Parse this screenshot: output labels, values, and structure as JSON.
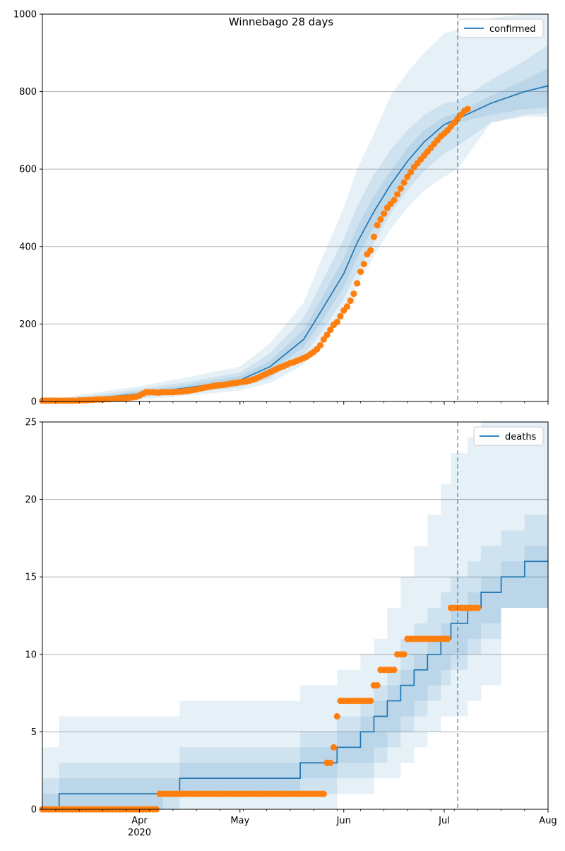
{
  "figure_title": "Winnebago 28 days",
  "x_ticks": [
    {
      "date": "2020-04-01",
      "label": "Apr",
      "sublabel": "2020"
    },
    {
      "date": "2020-05-01",
      "label": "May",
      "sublabel": ""
    },
    {
      "date": "2020-06-01",
      "label": "Jun",
      "sublabel": ""
    },
    {
      "date": "2020-07-01",
      "label": "Jul",
      "sublabel": ""
    },
    {
      "date": "2020-08-01",
      "label": "Aug",
      "sublabel": ""
    }
  ],
  "x_range": [
    "2020-03-03",
    "2020-08-01"
  ],
  "forecast_start": "2020-07-05",
  "colors": {
    "model": "#1f77b4",
    "observed": "#ff7f0e",
    "band": "#1f77b4",
    "grid": "#b0b0b0"
  },
  "chart_data": [
    {
      "type": "line",
      "series_name": "confirmed",
      "legend_position": "top-right",
      "grid": "horizontal",
      "ylim": [
        0,
        1000
      ],
      "yticks": [
        0,
        200,
        400,
        600,
        800,
        1000
      ],
      "model_line": {
        "x": [
          "2020-03-03",
          "2020-03-15",
          "2020-04-01",
          "2020-04-15",
          "2020-05-01",
          "2020-05-10",
          "2020-05-20",
          "2020-05-25",
          "2020-06-01",
          "2020-06-05",
          "2020-06-10",
          "2020-06-15",
          "2020-06-20",
          "2020-06-25",
          "2020-07-01",
          "2020-07-05",
          "2020-07-15",
          "2020-07-25",
          "2020-08-01"
        ],
        "y": [
          0,
          5,
          20,
          35,
          55,
          90,
          160,
          230,
          330,
          410,
          490,
          560,
          620,
          670,
          715,
          730,
          770,
          800,
          815
        ]
      },
      "bands": [
        {
          "name": "inner",
          "upper": [
            0,
            8,
            26,
            43,
            66,
            105,
            185,
            260,
            370,
            450,
            530,
            595,
            655,
            700,
            735,
            745,
            790,
            830,
            860
          ],
          "lower": [
            0,
            3,
            15,
            28,
            45,
            75,
            140,
            200,
            295,
            370,
            450,
            525,
            585,
            635,
            680,
            720,
            740,
            755,
            760
          ]
        },
        {
          "name": "middle",
          "upper": [
            0,
            12,
            32,
            50,
            75,
            125,
            215,
            300,
            420,
            505,
            585,
            650,
            700,
            740,
            770,
            775,
            830,
            880,
            920
          ],
          "lower": [
            0,
            1,
            10,
            22,
            37,
            60,
            120,
            175,
            265,
            335,
            410,
            485,
            545,
            595,
            640,
            660,
            720,
            740,
            745
          ]
        },
        {
          "name": "outer",
          "upper": [
            0,
            18,
            40,
            62,
            90,
            150,
            255,
            360,
            500,
            600,
            690,
            790,
            850,
            900,
            950,
            960,
            990,
            1000,
            1000
          ],
          "lower": [
            0,
            0,
            5,
            15,
            28,
            48,
            95,
            145,
            230,
            300,
            375,
            445,
            500,
            545,
            580,
            600,
            720,
            735,
            735
          ]
        }
      ],
      "observed": {
        "x_start": "2020-03-03",
        "y": [
          2,
          2,
          2,
          2,
          2,
          2,
          2,
          2,
          2,
          2,
          2,
          3,
          3,
          3,
          4,
          4,
          5,
          5,
          5,
          6,
          6,
          7,
          7,
          8,
          8,
          9,
          10,
          11,
          12,
          15,
          20,
          24,
          24,
          24,
          23,
          23,
          24,
          24,
          24,
          24,
          25,
          25,
          26,
          27,
          28,
          30,
          31,
          33,
          35,
          37,
          38,
          40,
          41,
          42,
          43,
          44,
          46,
          47,
          48,
          50,
          51,
          52,
          54,
          57,
          60,
          64,
          68,
          72,
          76,
          80,
          84,
          88,
          91,
          95,
          99,
          101,
          105,
          108,
          112,
          116,
          122,
          128,
          135,
          145,
          160,
          172,
          185,
          198,
          205,
          220,
          235,
          245,
          260,
          278,
          305,
          335,
          355,
          380,
          390,
          425,
          455,
          470,
          485,
          500,
          510,
          520,
          535,
          550,
          565,
          580,
          592,
          605,
          615,
          625,
          635,
          645,
          655,
          665,
          675,
          685,
          692,
          700,
          710,
          720,
          730,
          740,
          750,
          755
        ]
      }
    },
    {
      "type": "line",
      "series_name": "deaths",
      "legend_position": "top-right",
      "grid": "horizontal",
      "ylim": [
        0,
        25
      ],
      "yticks": [
        0,
        5,
        10,
        15,
        20,
        25
      ],
      "model_steps": [
        [
          "2020-03-03",
          0
        ],
        [
          "2020-03-08",
          1
        ],
        [
          "2020-04-08",
          1
        ],
        [
          "2020-04-13",
          2
        ],
        [
          "2020-05-19",
          3
        ],
        [
          "2020-05-30",
          4
        ],
        [
          "2020-06-06",
          5
        ],
        [
          "2020-06-10",
          6
        ],
        [
          "2020-06-14",
          7
        ],
        [
          "2020-06-18",
          8
        ],
        [
          "2020-06-22",
          9
        ],
        [
          "2020-06-26",
          10
        ],
        [
          "2020-06-30",
          11
        ],
        [
          "2020-07-03",
          12
        ],
        [
          "2020-07-08",
          13
        ],
        [
          "2020-07-12",
          14
        ],
        [
          "2020-07-18",
          15
        ],
        [
          "2020-07-25",
          16
        ],
        [
          "2020-08-01",
          16
        ]
      ],
      "band_levels": [
        {
          "name": "inner",
          "upper": [
            1,
            2,
            2,
            3,
            4,
            5,
            6,
            7,
            8,
            9,
            10,
            11,
            12,
            13,
            14,
            15,
            16,
            17,
            18
          ],
          "lower": [
            0,
            0,
            1,
            1,
            2,
            3,
            3,
            4,
            5,
            6,
            7,
            8,
            9,
            10,
            11,
            12,
            13,
            13,
            14
          ]
        },
        {
          "name": "middle",
          "upper": [
            2,
            3,
            3,
            4,
            5,
            6,
            7,
            8,
            9,
            11,
            12,
            13,
            14,
            15,
            16,
            17,
            18,
            19,
            21
          ],
          "lower": [
            0,
            0,
            0,
            1,
            1,
            2,
            2,
            3,
            4,
            5,
            6,
            7,
            8,
            9,
            10,
            11,
            13,
            13,
            13
          ]
        },
        {
          "name": "outer",
          "upper": [
            4,
            6,
            6,
            7,
            8,
            9,
            10,
            11,
            13,
            15,
            17,
            19,
            21,
            23,
            24,
            25,
            25,
            25,
            25
          ],
          "lower": [
            0,
            0,
            0,
            0,
            0,
            1,
            1,
            2,
            2,
            3,
            4,
            5,
            6,
            6,
            7,
            8,
            13,
            13,
            13
          ]
        }
      ],
      "observed": {
        "segments": [
          {
            "from": "2020-03-03",
            "to": "2020-04-06",
            "value": 0
          },
          {
            "from": "2020-04-07",
            "to": "2020-05-26",
            "value": 1
          },
          {
            "from": "2020-05-27",
            "to": "2020-05-28",
            "value": 3
          },
          {
            "from": "2020-05-29",
            "to": "2020-05-29",
            "value": 4
          },
          {
            "from": "2020-05-30",
            "to": "2020-05-30",
            "value": 6
          },
          {
            "from": "2020-05-31",
            "to": "2020-06-09",
            "value": 7
          },
          {
            "from": "2020-06-10",
            "to": "2020-06-11",
            "value": 8
          },
          {
            "from": "2020-06-12",
            "to": "2020-06-16",
            "value": 9
          },
          {
            "from": "2020-06-17",
            "to": "2020-06-19",
            "value": 10
          },
          {
            "from": "2020-06-20",
            "to": "2020-07-02",
            "value": 11
          },
          {
            "from": "2020-07-03",
            "to": "2020-07-11",
            "value": 13
          }
        ]
      }
    }
  ]
}
